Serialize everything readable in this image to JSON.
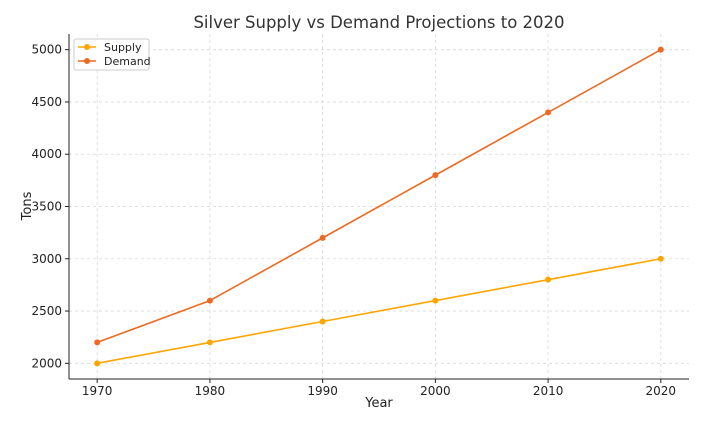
{
  "chart_data": {
    "type": "line",
    "title": "Silver Supply vs Demand Projections to 2020",
    "xlabel": "Year",
    "ylabel": "Tons",
    "x": [
      1970,
      1980,
      1990,
      2000,
      2010,
      2020
    ],
    "xticks": [
      "1970",
      "1980",
      "1990",
      "2000",
      "2010",
      "2020"
    ],
    "yticks": [
      "2000",
      "2500",
      "3000",
      "3500",
      "4000",
      "4500",
      "5000"
    ],
    "xlim": [
      1967.5,
      2022.5
    ],
    "ylim": [
      1850,
      5150
    ],
    "grid": true,
    "legend_position": "upper-left",
    "series": [
      {
        "name": "Supply",
        "color": "#FFA500",
        "values": [
          2000,
          2200,
          2400,
          2600,
          2800,
          3000
        ]
      },
      {
        "name": "Demand",
        "color": "#EE6A22",
        "values": [
          2200,
          2600,
          3200,
          3800,
          4400,
          5000
        ]
      }
    ]
  }
}
